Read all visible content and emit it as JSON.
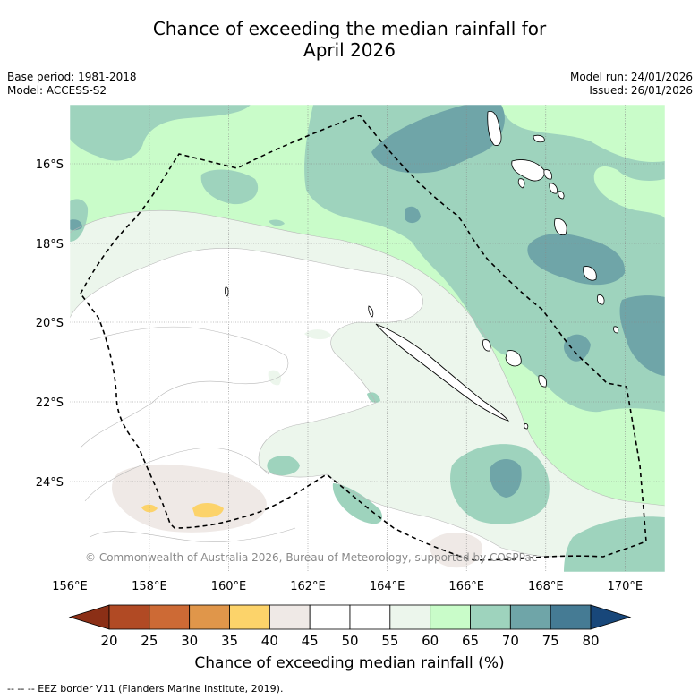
{
  "title_line1": "Chance of exceeding the median rainfall for",
  "title_line2": "April 2026",
  "base_period": "Base period: 1981-2018",
  "model": "Model: ACCESS-S2",
  "model_run": "Model run: 24/01/2026",
  "issued": "Issued: 26/01/2026",
  "map": {
    "lon_ticks": [
      "156°E",
      "158°E",
      "160°E",
      "162°E",
      "164°E",
      "166°E",
      "168°E",
      "170°E"
    ],
    "lat_ticks": [
      "16°S",
      "18°S",
      "20°S",
      "22°S",
      "24°S"
    ],
    "copyright": "© Commonwealth of Australia 2026, Bureau of Meteorology, supported by COSPPac"
  },
  "colorbar": {
    "ticks": [
      "20",
      "25",
      "30",
      "35",
      "40",
      "45",
      "50",
      "55",
      "60",
      "65",
      "70",
      "75",
      "80"
    ],
    "colors": [
      "#8b2f16",
      "#b14a24",
      "#cd6a35",
      "#e0964a",
      "#fcd36a",
      "#efe9e6",
      "#ffffff",
      "#ffffff",
      "#ecf6ec",
      "#c9fcc9",
      "#9ed3bd",
      "#6fa5a8",
      "#457b94",
      "#18477a"
    ],
    "label": "Chance of exceeding median rainfall (%)"
  },
  "footer": "--  --  -- EEZ border V11 (Flanders Marine Institute, 2019)."
}
